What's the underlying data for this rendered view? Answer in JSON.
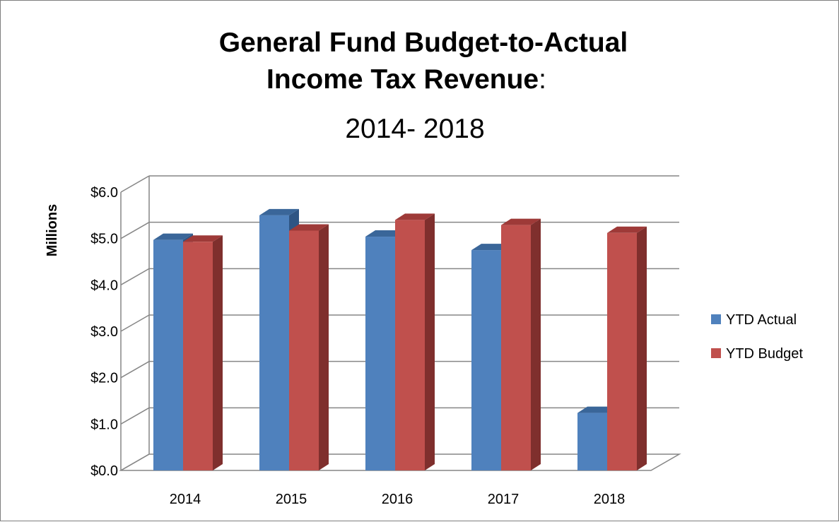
{
  "chart_data": {
    "type": "bar",
    "title_line1": "General Fund Budget-to-Actual",
    "title_line2_bold": "Income Tax Revenue",
    "title_line2_tail": ":",
    "title_line3": "2014- 2018",
    "ylabel": "Millions",
    "xlabel": "",
    "ylim": [
      0,
      6
    ],
    "ytick_values": [
      0,
      1,
      2,
      3,
      4,
      5,
      6
    ],
    "ytick_labels": [
      "$0.0",
      "$1.0",
      "$2.0",
      "$3.0",
      "$4.0",
      "$5.0",
      "$6.0"
    ],
    "categories": [
      "2014",
      "2015",
      "2016",
      "2017",
      "2018"
    ],
    "series": [
      {
        "name": "YTD Actual",
        "values": [
          4.97,
          5.5,
          5.04,
          4.75,
          1.24
        ]
      },
      {
        "name": "YTD Budget",
        "values": [
          4.93,
          5.17,
          5.4,
          5.29,
          5.12
        ]
      }
    ],
    "grid": true,
    "legend": "right",
    "colors": {
      "actual_front": "#4f81bd",
      "actual_top": "#3a6699",
      "actual_side": "#2f5584",
      "budget_front": "#c0504d",
      "budget_top": "#9e3a38",
      "budget_side": "#7f2f2d",
      "grid": "#868686",
      "axis_wall": "#868686"
    }
  }
}
